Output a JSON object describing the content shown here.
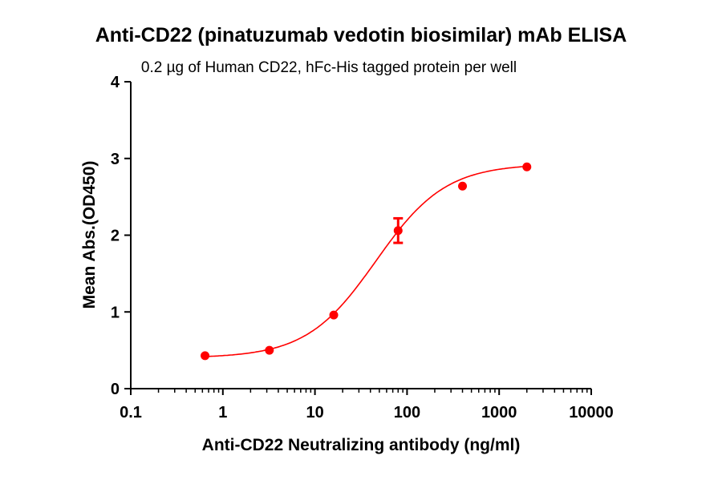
{
  "chart_data": {
    "type": "scatter",
    "title": "Anti-CD22 (pinatuzumab vedotin biosimilar) mAb ELISA",
    "subtitle": "0.2 µg of Human CD22, hFc-His tagged protein per well",
    "xlabel": "Anti-CD22 Neutralizing antibody (ng/ml)",
    "ylabel": "Mean Abs.(OD450)",
    "x_scale": "log",
    "xlim": [
      0.1,
      10000
    ],
    "ylim": [
      0,
      4
    ],
    "x_ticks": [
      "0.1",
      "1",
      "10",
      "100",
      "1000",
      "10000"
    ],
    "y_ticks": [
      "0",
      "1",
      "2",
      "3",
      "4"
    ],
    "grid": false,
    "color": "#ff0000",
    "points": [
      {
        "x": 0.64,
        "y": 0.43,
        "err": 0
      },
      {
        "x": 3.2,
        "y": 0.5,
        "err": 0
      },
      {
        "x": 16,
        "y": 0.96,
        "err": 0
      },
      {
        "x": 80,
        "y": 2.06,
        "err": 0.16
      },
      {
        "x": 400,
        "y": 2.64,
        "err": 0
      },
      {
        "x": 2000,
        "y": 2.89,
        "err": 0
      }
    ],
    "fit": {
      "model": "4PL",
      "bottom": 0.4,
      "top": 2.93,
      "ec50": 46,
      "hill": 1.15
    }
  }
}
